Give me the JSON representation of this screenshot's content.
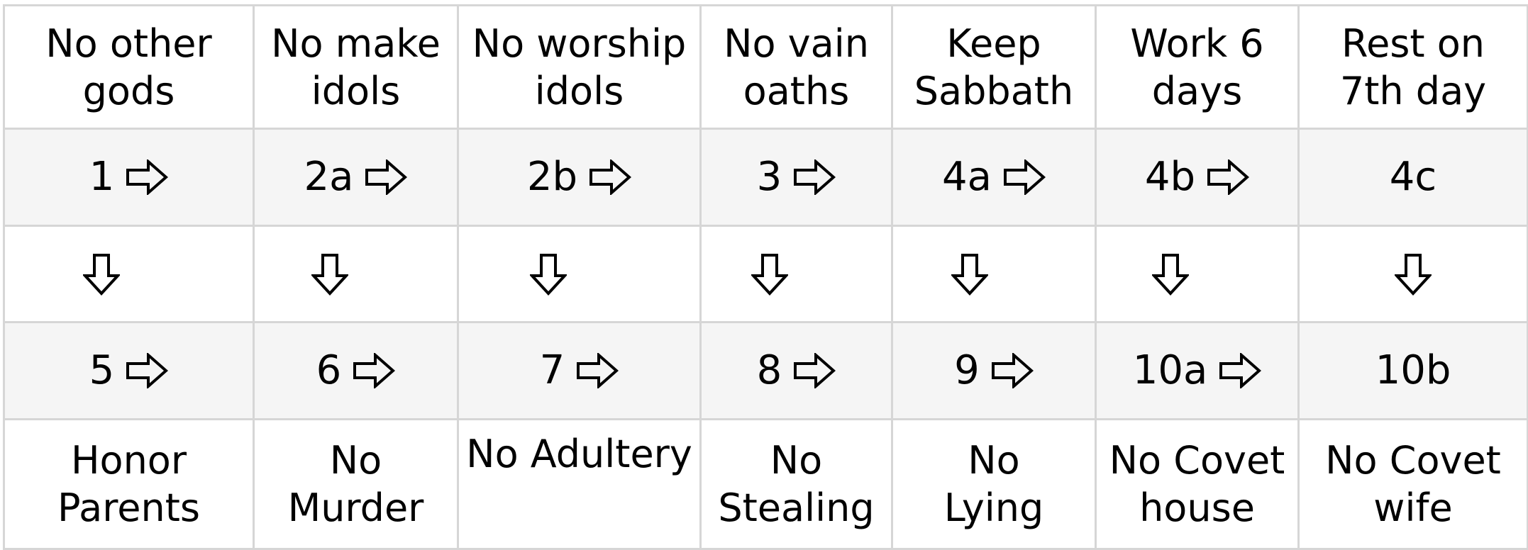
{
  "columns": [
    {
      "top_label": "No other\ngods",
      "top_number": "1",
      "top_arrow": "right-arrow-icon",
      "bottom_number": "5",
      "bottom_arrow": "right-arrow-icon",
      "bottom_label": "Honor\nParents"
    },
    {
      "top_label": "No make\nidols",
      "top_number": "2a",
      "top_arrow": "right-arrow-icon",
      "bottom_number": "6",
      "bottom_arrow": "right-arrow-icon",
      "bottom_label": "No\nMurder"
    },
    {
      "top_label": "No worship\nidols",
      "top_number": "2b",
      "top_arrow": "right-arrow-icon",
      "bottom_number": "7",
      "bottom_arrow": "right-arrow-icon",
      "bottom_label": "No Adultery"
    },
    {
      "top_label": "No vain\noaths",
      "top_number": "3",
      "top_arrow": "right-arrow-icon",
      "bottom_number": "8",
      "bottom_arrow": "right-arrow-icon",
      "bottom_label": "No\nStealing"
    },
    {
      "top_label": "Keep\nSabbath",
      "top_number": "4a",
      "top_arrow": "right-arrow-icon",
      "bottom_number": "9",
      "bottom_arrow": "right-arrow-icon",
      "bottom_label": "No\nLying"
    },
    {
      "top_label": "Work 6\ndays",
      "top_number": "4b",
      "top_arrow": "right-arrow-icon",
      "bottom_number": "10a",
      "bottom_arrow": "right-arrow-icon",
      "bottom_label": "No Covet\nhouse"
    },
    {
      "top_label": "Rest on\n7th day",
      "top_number": "4c",
      "top_arrow": "",
      "bottom_number": "10b",
      "bottom_arrow": "",
      "bottom_label": "No Covet\nwife"
    }
  ],
  "down_arrow_icon": "down-arrow-icon",
  "colors": {
    "grid_line": "#d6d6d6",
    "shaded_row": "#f5f5f5",
    "background": "#ffffff",
    "text": "#000000"
  }
}
